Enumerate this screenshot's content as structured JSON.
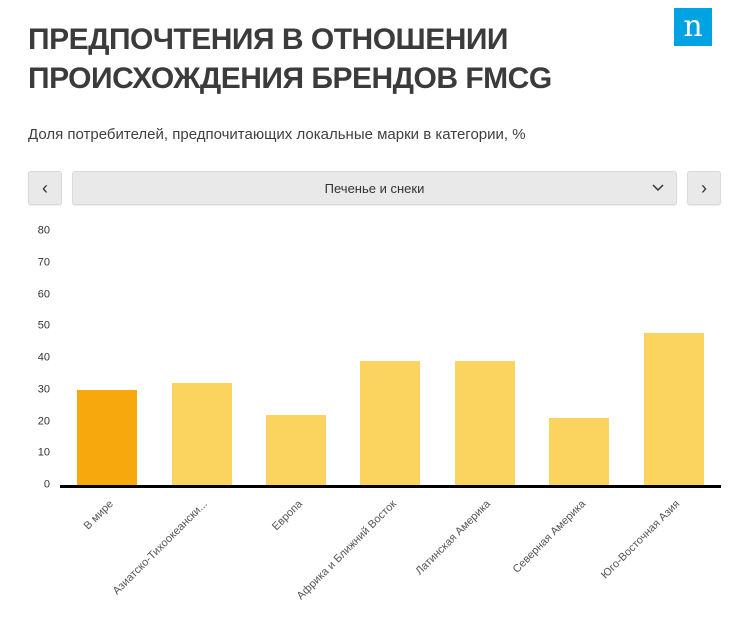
{
  "header": {
    "title_line1": "ПРЕДПОЧТЕНИЯ В ОТНОШЕНИИ",
    "title_line2": "ПРОИСХОЖДЕНИЯ БРЕНДОВ FMCG",
    "logo_letter": "n",
    "logo_color": "#00a3e1"
  },
  "subtitle": "Доля потребителей, предпочитающих локальные марки в категории, %",
  "selector": {
    "prev": "‹",
    "next": "›",
    "value": "Печенье и снеки"
  },
  "chart_data": {
    "type": "bar",
    "title": "Доля потребителей, предпочитающих локальные марки в категории, %",
    "categories": [
      "В мире",
      "Азиатско-Тихоокеански...",
      "Европа",
      "Африка и Ближний Восток",
      "Латинская Америка",
      "Северная Америка",
      "Юго-Восточная Азия"
    ],
    "values": [
      30,
      32,
      22,
      39,
      39,
      21,
      48
    ],
    "ylim": [
      0,
      80
    ],
    "yticks": [
      0,
      10,
      20,
      30,
      40,
      50,
      60,
      70,
      80
    ],
    "highlight_index": 0,
    "colors": {
      "bar": "#FAD45E",
      "highlight": "#F7A80D",
      "axis": "#000000"
    },
    "grid": false,
    "legend": "none"
  }
}
